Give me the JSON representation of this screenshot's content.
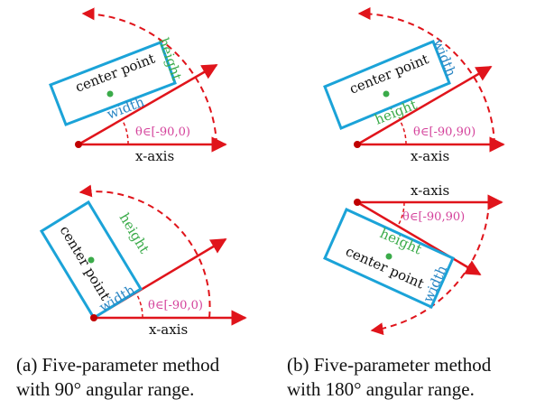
{
  "colors": {
    "axis": "#e0141b",
    "rect": "#1ba3d8",
    "height_text": "#3bab4a",
    "width_text": "#2a86c4",
    "theta_text": "#d4429b",
    "center_dot": "#3bab4a",
    "text": "#111111"
  },
  "labels": {
    "x_axis": "x-axis",
    "center_point": "center point",
    "height": "height",
    "width": "width",
    "theta_90": "θ∈[-90,0)",
    "theta_180": "θ∈[-90,90)"
  },
  "captions": {
    "a_line1": "(a) Five-parameter method",
    "a_line2": "with 90° angular range.",
    "b_line1": "(b) Five-parameter method",
    "b_line2": "with 180° angular range."
  }
}
